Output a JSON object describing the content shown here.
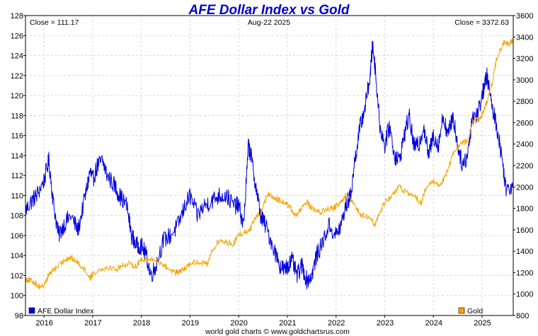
{
  "chart_data": {
    "type": "line",
    "title": "AFE Dollar Index vs Gold",
    "date_label": "Aug-22  2025",
    "close_left": "Close = 111.17",
    "close_right": "Close = 3372.63",
    "footer": "world gold charts © www.goldchartsrus.com",
    "x_ticks": [
      "2016",
      "2017",
      "2018",
      "2019",
      "2020",
      "2021",
      "2022",
      "2023",
      "2024",
      "2025"
    ],
    "x_range": [
      2015.62,
      2025.64
    ],
    "y_left": {
      "range": [
        98,
        128
      ],
      "ticks": [
        98,
        100,
        102,
        104,
        106,
        108,
        110,
        112,
        114,
        116,
        118,
        120,
        122,
        124,
        126,
        128
      ]
    },
    "y_right": {
      "range": [
        800,
        3600
      ],
      "ticks": [
        800,
        1000,
        1200,
        1400,
        1600,
        1800,
        2000,
        2200,
        2400,
        2600,
        2800,
        3000,
        3200,
        3400,
        3600
      ]
    },
    "series": [
      {
        "name": "AFE Dollar Index",
        "axis": "left",
        "color": "#0000dd",
        "x": [
          2015.62,
          2015.75,
          2015.85,
          2016.0,
          2016.1,
          2016.2,
          2016.3,
          2016.4,
          2016.55,
          2016.7,
          2016.85,
          2016.95,
          2017.0,
          2017.1,
          2017.2,
          2017.3,
          2017.45,
          2017.55,
          2017.7,
          2017.8,
          2017.9,
          2018.0,
          2018.1,
          2018.2,
          2018.3,
          2018.45,
          2018.6,
          2018.75,
          2018.9,
          2019.0,
          2019.15,
          2019.3,
          2019.45,
          2019.6,
          2019.75,
          2019.9,
          2020.0,
          2020.1,
          2020.2,
          2020.25,
          2020.35,
          2020.45,
          2020.55,
          2020.7,
          2020.85,
          2020.95,
          2021.0,
          2021.1,
          2021.2,
          2021.3,
          2021.4,
          2021.5,
          2021.6,
          2021.7,
          2021.85,
          2022.0,
          2022.1,
          2022.2,
          2022.3,
          2022.4,
          2022.5,
          2022.6,
          2022.7,
          2022.75,
          2022.8,
          2022.9,
          2023.0,
          2023.1,
          2023.2,
          2023.3,
          2023.4,
          2023.5,
          2023.6,
          2023.7,
          2023.8,
          2023.9,
          2024.0,
          2024.1,
          2024.2,
          2024.3,
          2024.4,
          2024.5,
          2024.6,
          2024.7,
          2024.8,
          2024.9,
          2025.0,
          2025.05,
          2025.1,
          2025.2,
          2025.3,
          2025.4,
          2025.5,
          2025.64
        ],
        "values": [
          108.5,
          109.5,
          110,
          111.5,
          113.5,
          109,
          106,
          107,
          108,
          106.5,
          110,
          112.5,
          111.5,
          113,
          113.5,
          112,
          111,
          110,
          109,
          106,
          105,
          105,
          104,
          102,
          103,
          105.5,
          106,
          107,
          109,
          110,
          108,
          109,
          109.5,
          110,
          110,
          109,
          109,
          107,
          115,
          114,
          111,
          108,
          107,
          105,
          103,
          102.5,
          103,
          103.5,
          102,
          103,
          101.5,
          102,
          104,
          105,
          107,
          106,
          107,
          109,
          110,
          114,
          117,
          119,
          122,
          125,
          123,
          117,
          115,
          117,
          114,
          113.5,
          116,
          118,
          115,
          115,
          117,
          114,
          116,
          115,
          118,
          116,
          118,
          115,
          113,
          114,
          118,
          118,
          120,
          121,
          122,
          119,
          117,
          114,
          110.5,
          111.2
        ]
      },
      {
        "name": "Gold",
        "axis": "right",
        "color": "#f5a500",
        "x": [
          2015.62,
          2015.7,
          2015.8,
          2015.9,
          2016.0,
          2016.1,
          2016.2,
          2016.3,
          2016.45,
          2016.55,
          2016.65,
          2016.8,
          2016.95,
          2017.0,
          2017.2,
          2017.35,
          2017.5,
          2017.6,
          2017.75,
          2017.9,
          2018.0,
          2018.1,
          2018.25,
          2018.4,
          2018.55,
          2018.7,
          2018.8,
          2018.9,
          2019.0,
          2019.2,
          2019.35,
          2019.45,
          2019.6,
          2019.75,
          2019.9,
          2020.0,
          2020.15,
          2020.25,
          2020.35,
          2020.45,
          2020.6,
          2020.7,
          2020.8,
          2020.9,
          2021.0,
          2021.15,
          2021.25,
          2021.4,
          2021.5,
          2021.65,
          2021.8,
          2021.95,
          2022.0,
          2022.1,
          2022.2,
          2022.35,
          2022.5,
          2022.65,
          2022.8,
          2022.9,
          2023.0,
          2023.15,
          2023.3,
          2023.4,
          2023.6,
          2023.75,
          2023.85,
          2024.0,
          2024.15,
          2024.25,
          2024.4,
          2024.55,
          2024.7,
          2024.85,
          2024.95,
          2025.0,
          2025.1,
          2025.2,
          2025.3,
          2025.45,
          2025.55,
          2025.64
        ],
        "values": [
          1140,
          1130,
          1110,
          1070,
          1080,
          1180,
          1230,
          1260,
          1330,
          1340,
          1310,
          1250,
          1150,
          1190,
          1240,
          1250,
          1230,
          1270,
          1280,
          1260,
          1330,
          1320,
          1320,
          1290,
          1240,
          1200,
          1210,
          1240,
          1290,
          1300,
          1280,
          1400,
          1500,
          1480,
          1470,
          1560,
          1580,
          1620,
          1720,
          1760,
          1940,
          1900,
          1880,
          1860,
          1840,
          1740,
          1770,
          1860,
          1800,
          1760,
          1790,
          1800,
          1820,
          1850,
          1920,
          1850,
          1740,
          1720,
          1650,
          1760,
          1860,
          1920,
          2000,
          1960,
          1920,
          1850,
          1990,
          2050,
          2020,
          2100,
          2300,
          2400,
          2430,
          2650,
          2620,
          2680,
          2800,
          2950,
          3200,
          3350,
          3330,
          3372.63
        ]
      }
    ],
    "legend": [
      {
        "name": "AFE Dollar Index",
        "color": "#0000dd"
      },
      {
        "name": "Gold",
        "color": "#f5a500"
      }
    ]
  }
}
